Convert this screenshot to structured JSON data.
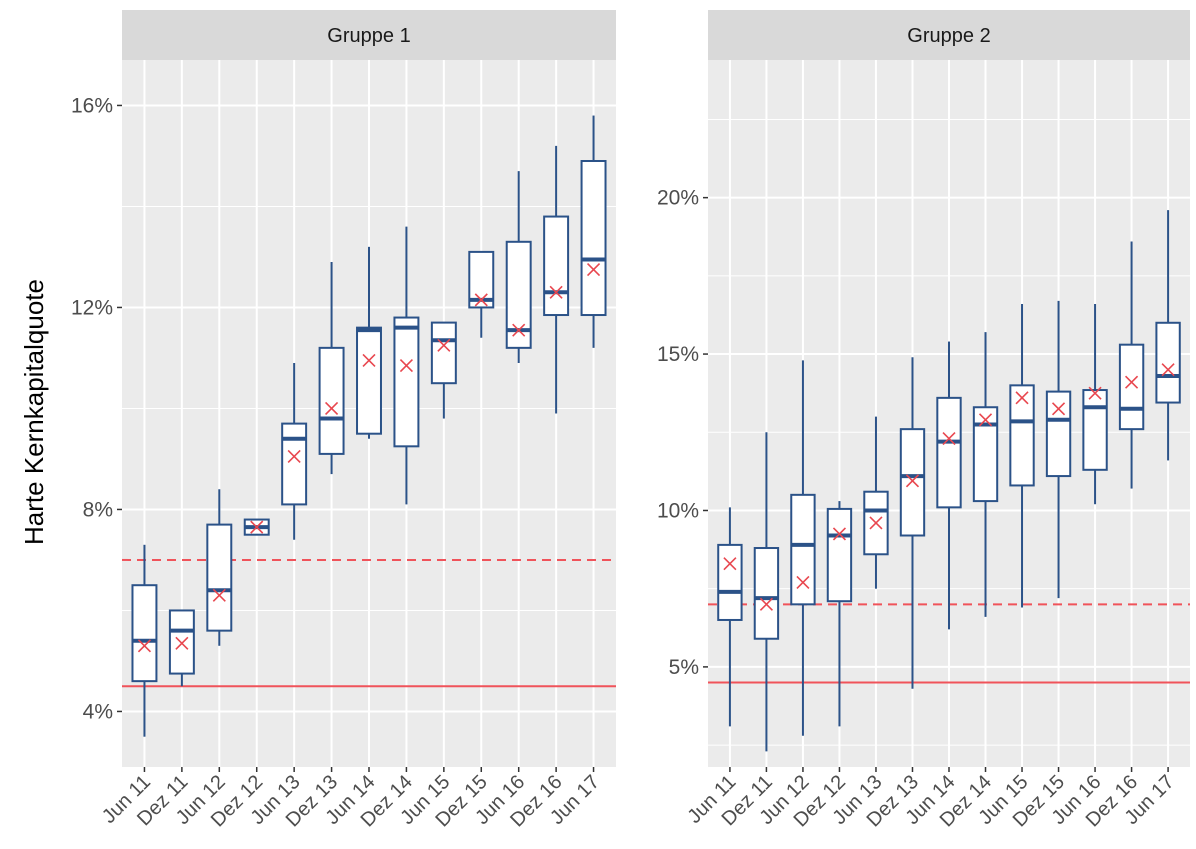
{
  "chart_data": {
    "type": "boxplot",
    "ylabel": "Harte Kernkapitalquote",
    "categories": [
      "Jun 11",
      "Dez 11",
      "Jun 12",
      "Dez 12",
      "Jun 13",
      "Dez 13",
      "Jun 14",
      "Dez 14",
      "Jun 15",
      "Dez 15",
      "Jun 16",
      "Dez 16",
      "Jun 17"
    ],
    "colors": {
      "box": "#2b5288",
      "mean_marker": "#e8474f",
      "reference_line": "#f0535a",
      "panel_bg": "#ebebeb",
      "strip_bg": "#d9d9d9",
      "grid": "#ffffff"
    },
    "panels": [
      {
        "strip_label": "Gruppe 1",
        "ylim": [
          2.9,
          16.9
        ],
        "y_ticks": [
          4,
          8,
          12,
          16
        ],
        "y_tick_labels": [
          "4%",
          "8%",
          "12%",
          "16%"
        ],
        "reference_lines": [
          {
            "value": 4.5,
            "style": "solid"
          },
          {
            "value": 7.0,
            "style": "dashed"
          }
        ],
        "boxes": [
          {
            "min": 3.5,
            "q1": 4.6,
            "median": 5.4,
            "q3": 6.5,
            "max": 7.3,
            "mean": 5.3
          },
          {
            "min": 4.5,
            "q1": 4.75,
            "median": 5.6,
            "q3": 6.0,
            "max": 6.0,
            "mean": 5.35
          },
          {
            "min": 5.3,
            "q1": 5.6,
            "median": 6.4,
            "q3": 7.7,
            "max": 8.4,
            "mean": 6.3
          },
          {
            "min": 7.5,
            "q1": 7.5,
            "median": 7.65,
            "q3": 7.8,
            "max": 7.8,
            "mean": 7.65
          },
          {
            "min": 7.4,
            "q1": 8.1,
            "median": 9.4,
            "q3": 9.7,
            "max": 10.9,
            "mean": 9.05
          },
          {
            "min": 8.7,
            "q1": 9.1,
            "median": 9.8,
            "q3": 11.2,
            "max": 12.9,
            "mean": 10.0
          },
          {
            "min": 9.4,
            "q1": 9.5,
            "median": 11.55,
            "q3": 11.6,
            "max": 13.2,
            "mean": 10.95
          },
          {
            "min": 8.1,
            "q1": 9.25,
            "median": 11.6,
            "q3": 11.8,
            "max": 13.6,
            "mean": 10.85
          },
          {
            "min": 9.8,
            "q1": 10.5,
            "median": 11.35,
            "q3": 11.7,
            "max": 11.7,
            "mean": 11.25
          },
          {
            "min": 11.4,
            "q1": 12.0,
            "median": 12.15,
            "q3": 13.1,
            "max": 13.1,
            "mean": 12.15
          },
          {
            "min": 10.9,
            "q1": 11.2,
            "median": 11.55,
            "q3": 13.3,
            "max": 14.7,
            "mean": 11.55
          },
          {
            "min": 9.9,
            "q1": 11.85,
            "median": 12.3,
            "q3": 13.8,
            "max": 15.2,
            "mean": 12.3
          },
          {
            "min": 11.2,
            "q1": 11.85,
            "median": 12.95,
            "q3": 14.9,
            "max": 15.8,
            "mean": 12.75
          }
        ]
      },
      {
        "strip_label": "Gruppe 2",
        "ylim": [
          1.8,
          24.4
        ],
        "y_ticks": [
          5,
          10,
          15,
          20
        ],
        "y_tick_labels": [
          "5%",
          "10%",
          "15%",
          "20%"
        ],
        "reference_lines": [
          {
            "value": 4.5,
            "style": "solid"
          },
          {
            "value": 7.0,
            "style": "dashed"
          }
        ],
        "boxes": [
          {
            "min": 3.1,
            "q1": 6.5,
            "median": 7.4,
            "q3": 8.9,
            "max": 10.1,
            "mean": 8.3
          },
          {
            "min": 2.3,
            "q1": 5.9,
            "median": 7.2,
            "q3": 8.8,
            "max": 12.5,
            "mean": 7.0
          },
          {
            "min": 2.8,
            "q1": 7.0,
            "median": 8.9,
            "q3": 10.5,
            "max": 14.8,
            "mean": 7.7
          },
          {
            "min": 3.1,
            "q1": 7.1,
            "median": 9.2,
            "q3": 10.05,
            "max": 10.3,
            "mean": 9.25
          },
          {
            "min": 7.5,
            "q1": 8.6,
            "median": 10.0,
            "q3": 10.6,
            "max": 13.0,
            "mean": 9.6
          },
          {
            "min": 4.3,
            "q1": 9.2,
            "median": 11.1,
            "q3": 12.6,
            "max": 14.9,
            "mean": 10.95
          },
          {
            "min": 6.2,
            "q1": 10.1,
            "median": 12.2,
            "q3": 13.6,
            "max": 15.4,
            "mean": 12.3
          },
          {
            "min": 6.6,
            "q1": 10.3,
            "median": 12.75,
            "q3": 13.3,
            "max": 15.7,
            "mean": 12.9
          },
          {
            "min": 6.9,
            "q1": 10.8,
            "median": 12.85,
            "q3": 14.0,
            "max": 16.6,
            "mean": 13.6
          },
          {
            "min": 7.2,
            "q1": 11.1,
            "median": 12.9,
            "q3": 13.8,
            "max": 16.7,
            "mean": 13.25
          },
          {
            "min": 10.2,
            "q1": 11.3,
            "median": 13.3,
            "q3": 13.85,
            "max": 16.6,
            "mean": 13.75
          },
          {
            "min": 10.7,
            "q1": 12.6,
            "median": 13.25,
            "q3": 15.3,
            "max": 18.6,
            "mean": 14.1
          },
          {
            "min": 11.6,
            "q1": 13.45,
            "median": 14.3,
            "q3": 16.0,
            "max": 19.6,
            "mean": 14.5
          }
        ]
      }
    ]
  }
}
